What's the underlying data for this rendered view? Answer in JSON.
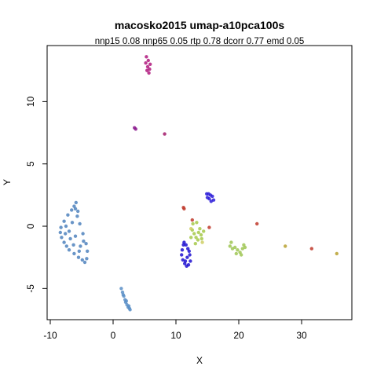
{
  "chart_data": {
    "type": "scatter",
    "title": "macosko2015 umap-a10pca100s",
    "subtitle": "nnp15 0.08 nnp65 0.05 rtp 0.78 dcorr 0.77 emd 0.05",
    "xlabel": "X",
    "ylabel": "Y",
    "xlim": [
      -10.5,
      38
    ],
    "ylim": [
      -7.5,
      14.5
    ],
    "x_ticks": [
      -10,
      0,
      10,
      20,
      30
    ],
    "x_tick_labels": [
      "-10",
      "0",
      "10",
      "20",
      "30"
    ],
    "y_ticks": [
      -5,
      0,
      5,
      10
    ],
    "y_tick_labels": [
      "-5",
      "0",
      "5",
      "10"
    ],
    "grid": false,
    "legend": "none",
    "clusters": [
      {
        "color": "#4f82bd",
        "x": [
          -6.2,
          -5.6,
          -5.9,
          -6.6,
          -7.2,
          -7.8,
          -8.3,
          -8.4,
          -8.2,
          -7.8,
          -7.4,
          -7.0,
          -6.2,
          -5.5,
          -4.9,
          -4.5,
          -4.2,
          -4.1,
          -4.3,
          -4.8,
          -5.3,
          -5.7,
          -6.0,
          -6.5,
          -7.0,
          -7.5,
          -6.0,
          -5.2,
          -6.8,
          -7.6,
          -6.3,
          -5.4,
          -4.7
        ],
        "y": [
          1.6,
          1.2,
          1.9,
          1.3,
          0.9,
          0.4,
          -0.1,
          -0.5,
          -0.9,
          -1.3,
          -1.6,
          -1.9,
          -2.2,
          -2.5,
          -2.7,
          -2.9,
          -2.6,
          -2.0,
          -1.4,
          -0.6,
          0.2,
          0.8,
          1.4,
          0.3,
          -0.4,
          0.0,
          -0.8,
          -1.6,
          -1.0,
          -0.6,
          -1.5,
          -2.0,
          -1.2
        ]
      },
      {
        "color": "#5b8fc7",
        "x": [
          1.3,
          1.5,
          1.7,
          1.9,
          2.0,
          2.2,
          2.4,
          2.6,
          2.7,
          1.6,
          2.1,
          2.5
        ],
        "y": [
          -5.0,
          -5.3,
          -5.6,
          -5.9,
          -6.1,
          -6.3,
          -6.5,
          -6.6,
          -6.7,
          -5.5,
          -6.0,
          -6.4
        ]
      },
      {
        "color": "#1f10d0",
        "x": [
          11.2,
          11.0,
          10.9,
          11.1,
          11.4,
          11.7,
          12.0,
          12.3,
          12.2,
          11.9,
          11.6,
          11.3,
          11.8,
          12.1,
          11.5
        ],
        "y": [
          -1.5,
          -1.9,
          -2.3,
          -2.7,
          -3.0,
          -3.2,
          -3.1,
          -2.8,
          -2.3,
          -1.8,
          -1.5,
          -1.3,
          -2.5,
          -2.0,
          -2.8
        ]
      },
      {
        "color": "#2a1bd8",
        "x": [
          14.9,
          15.2,
          15.5,
          15.8,
          16.0,
          15.6,
          15.3,
          15.0
        ],
        "y": [
          2.6,
          2.6,
          2.5,
          2.4,
          2.1,
          2.0,
          2.2,
          2.3
        ]
      },
      {
        "color": "#a6c94a",
        "x": [
          12.6,
          12.9,
          13.2,
          13.6,
          14.0,
          14.4,
          13.1,
          13.5,
          13.8,
          12.7,
          13.3,
          14.1,
          12.4
        ],
        "y": [
          -0.3,
          -0.6,
          -0.9,
          -0.5,
          -0.7,
          -0.4,
          -1.4,
          -1.1,
          -0.2,
          0.2,
          0.3,
          -1.0,
          -0.9
        ]
      },
      {
        "color": "#9fc653",
        "x": [
          18.6,
          19.0,
          19.4,
          19.8,
          20.2,
          20.6,
          21.0,
          19.6,
          20.4,
          18.8,
          20.8
        ],
        "y": [
          -1.6,
          -1.8,
          -1.7,
          -1.9,
          -2.1,
          -1.8,
          -1.7,
          -2.2,
          -2.3,
          -1.3,
          -1.5
        ]
      },
      {
        "color": "#b0197e",
        "x": [
          5.3,
          5.6,
          5.9,
          5.5,
          5.8,
          5.4,
          5.7,
          5.2
        ],
        "y": [
          13.6,
          13.3,
          13.0,
          12.8,
          12.6,
          12.5,
          12.3,
          13.1
        ]
      },
      {
        "color": "#8b1a8e",
        "x": [
          3.4,
          3.6
        ],
        "y": [
          7.9,
          7.8
        ]
      },
      {
        "color": "#a21a6a",
        "x": [
          8.2
        ],
        "y": [
          7.4
        ]
      },
      {
        "color": "#c0392b",
        "x": [
          11.2,
          11.3,
          15.3,
          22.9,
          31.6,
          12.6
        ],
        "y": [
          1.5,
          1.4,
          -0.1,
          0.2,
          -1.8,
          0.5
        ]
      },
      {
        "color": "#b8a130",
        "x": [
          27.4,
          35.6
        ],
        "y": [
          -1.6,
          -2.2
        ]
      },
      {
        "color": "#cfcf66",
        "x": [
          12.4,
          14.2
        ],
        "y": [
          -0.2,
          -1.3
        ]
      }
    ]
  }
}
